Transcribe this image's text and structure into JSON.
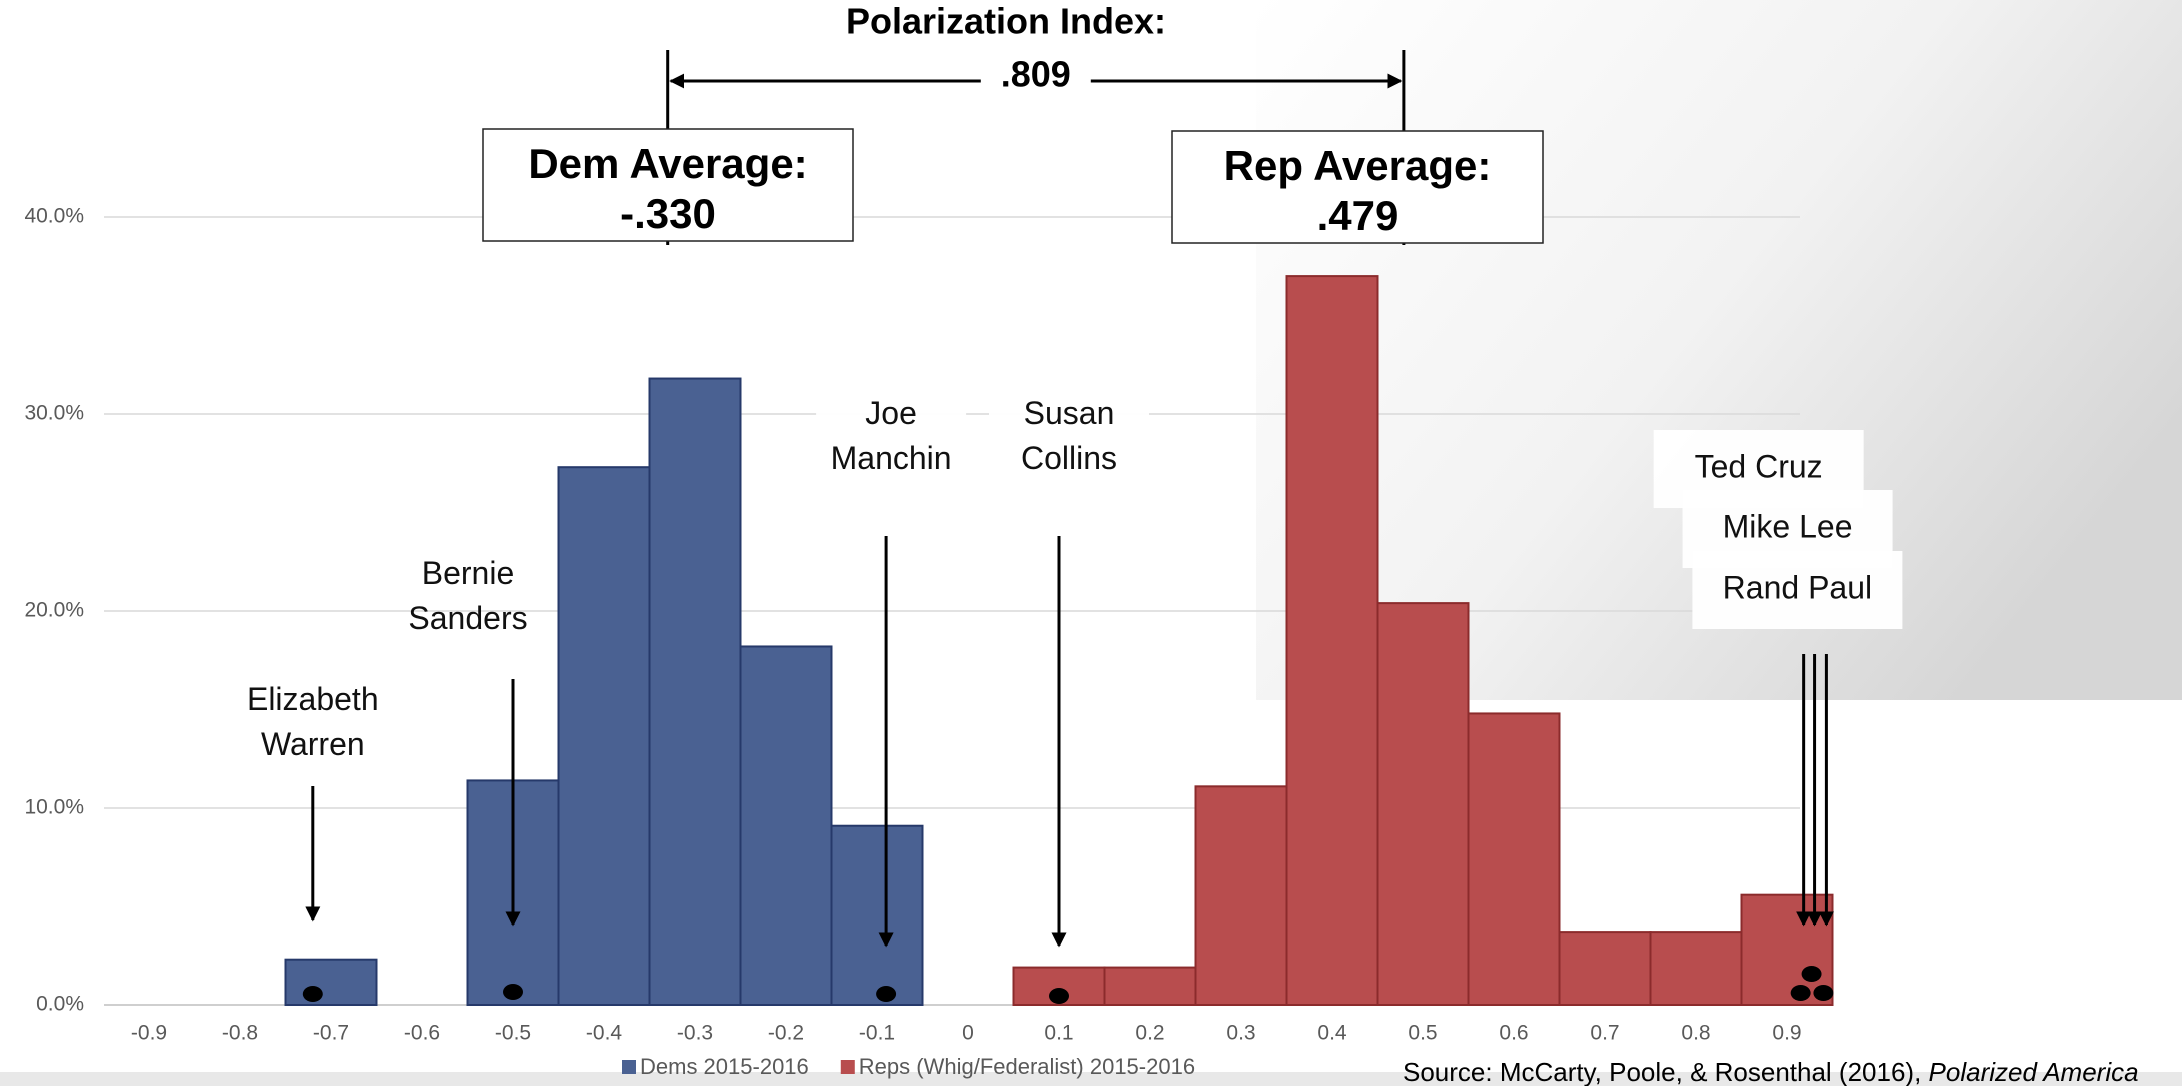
{
  "chart_data": {
    "type": "histogram",
    "xlim": [
      -0.97,
      0.97
    ],
    "xticks": [
      -0.9,
      -0.8,
      -0.7,
      -0.6,
      -0.5,
      -0.4,
      -0.3,
      -0.2,
      -0.1,
      0,
      0.1,
      0.2,
      0.3,
      0.4,
      0.5,
      0.6,
      0.7,
      0.8,
      0.9
    ],
    "ylim": [
      0,
      42
    ],
    "yticks": [
      {
        "value": 0,
        "label": "0.0%"
      },
      {
        "value": 10,
        "label": "10.0%"
      },
      {
        "value": 20,
        "label": "20.0%"
      },
      {
        "value": 30,
        "label": "30.0%"
      },
      {
        "value": 40,
        "label": "40.0%"
      }
    ],
    "grid": true,
    "series": [
      {
        "name": "Dems 2015-2016",
        "color": "#4a6192",
        "bins": [
          -0.75,
          -0.65,
          -0.55,
          -0.45,
          -0.35,
          -0.25,
          -0.15,
          -0.05
        ],
        "values": [
          2.3,
          0,
          11.4,
          27.3,
          31.8,
          18.2,
          9.1
        ]
      },
      {
        "name": "Reps (Whig/Federalist) 2015-2016",
        "color": "#b84d4e",
        "bins": [
          0.05,
          0.15,
          0.25,
          0.35,
          0.45,
          0.55,
          0.65,
          0.75,
          0.85,
          0.95
        ],
        "values": [
          1.9,
          1.9,
          11.1,
          37.0,
          20.4,
          14.8,
          3.7,
          3.7,
          5.6
        ]
      }
    ],
    "polarization": {
      "label": "Polarization Index:",
      "value": 0.809,
      "value_label": ".809"
    },
    "averages": [
      {
        "label": "Dem Average:",
        "value": -0.33,
        "value_label": "-.330"
      },
      {
        "label": "Rep Average:",
        "value": 0.479,
        "value_label": ".479"
      }
    ],
    "senators": [
      {
        "lines": [
          "Elizabeth",
          "Warren"
        ],
        "x": -0.72
      },
      {
        "lines": [
          "Bernie",
          "Sanders"
        ],
        "x": -0.5
      },
      {
        "lines": [
          "Joe",
          "Manchin"
        ],
        "x": -0.09
      },
      {
        "lines": [
          "Susan",
          "Collins"
        ],
        "x": 0.1
      },
      {
        "lines": [
          "Ted Cruz"
        ],
        "x": 0.915
      },
      {
        "lines": [
          "Mike Lee"
        ],
        "x": 0.927
      },
      {
        "lines": [
          "Rand Paul"
        ],
        "x": 0.94
      }
    ],
    "source": "Source:  McCarty, Poole, & Rosenthal (2016), ",
    "source_italic": "Polarized America"
  }
}
